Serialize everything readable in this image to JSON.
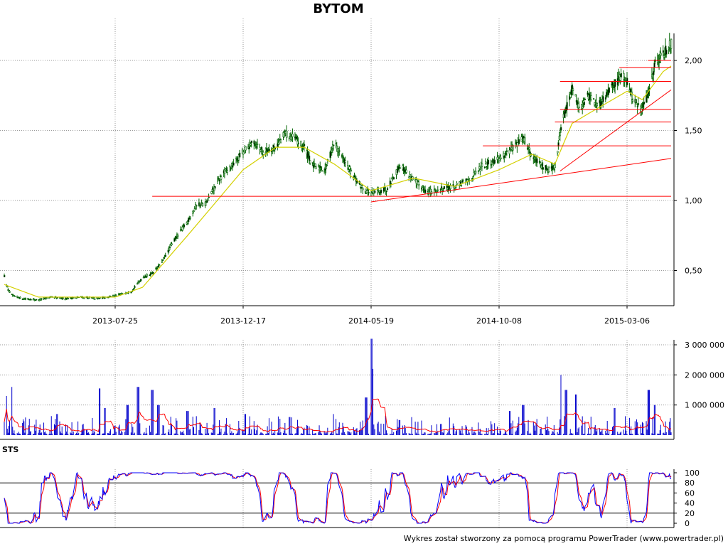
{
  "title": "BYTOM",
  "footer": "Wykres został stworzony za pomocą programu PowerTrader (www.powertrader.pl)",
  "colors": {
    "candle": "#006400",
    "moving_average": "#d4d000",
    "trendline": "#ff0000",
    "volume": "#0000cc",
    "volume_ma": "#ff0000",
    "sts_k": "#0000ff",
    "sts_d": "#ff0000",
    "grid": "#999999"
  },
  "chart_data": [
    {
      "type": "candlestick",
      "panel": "price",
      "title": "BYTOM",
      "x_ticks": [
        "2013-07-25",
        "2013-12-17",
        "2014-05-19",
        "2014-10-08",
        "2015-03-06"
      ],
      "y_ticks": [
        "0,50",
        "1,00",
        "1,50",
        "2,00"
      ],
      "ylim": [
        0.25,
        2.2
      ],
      "grid": "dotted",
      "close_keypoints": [
        [
          "2013-03-01",
          0.46
        ],
        [
          "2013-03-06",
          0.36
        ],
        [
          "2013-03-12",
          0.32
        ],
        [
          "2013-03-25",
          0.3
        ],
        [
          "2013-04-15",
          0.29
        ],
        [
          "2013-05-01",
          0.31
        ],
        [
          "2013-05-20",
          0.3
        ],
        [
          "2013-06-10",
          0.31
        ],
        [
          "2013-07-01",
          0.3
        ],
        [
          "2013-07-25",
          0.32
        ],
        [
          "2013-08-12",
          0.35
        ],
        [
          "2013-08-25",
          0.45
        ],
        [
          "2013-09-05",
          0.48
        ],
        [
          "2013-09-15",
          0.55
        ],
        [
          "2013-09-30",
          0.72
        ],
        [
          "2013-10-15",
          0.85
        ],
        [
          "2013-10-25",
          0.97
        ],
        [
          "2013-11-05",
          0.98
        ],
        [
          "2013-11-15",
          1.1
        ],
        [
          "2013-11-25",
          1.2
        ],
        [
          "2013-12-05",
          1.25
        ],
        [
          "2013-12-17",
          1.35
        ],
        [
          "2013-12-30",
          1.42
        ],
        [
          "2014-01-10",
          1.35
        ],
        [
          "2014-01-25",
          1.38
        ],
        [
          "2014-02-05",
          1.48
        ],
        [
          "2014-02-15",
          1.45
        ],
        [
          "2014-02-28",
          1.38
        ],
        [
          "2014-03-10",
          1.25
        ],
        [
          "2014-03-25",
          1.22
        ],
        [
          "2014-04-05",
          1.42
        ],
        [
          "2014-04-15",
          1.3
        ],
        [
          "2014-04-30",
          1.15
        ],
        [
          "2014-05-10",
          1.08
        ],
        [
          "2014-05-19",
          1.05
        ],
        [
          "2014-06-05",
          1.08
        ],
        [
          "2014-06-20",
          1.25
        ],
        [
          "2014-07-05",
          1.15
        ],
        [
          "2014-07-20",
          1.06
        ],
        [
          "2014-08-05",
          1.08
        ],
        [
          "2014-08-20",
          1.1
        ],
        [
          "2014-09-05",
          1.15
        ],
        [
          "2014-09-20",
          1.25
        ],
        [
          "2014-10-08",
          1.3
        ],
        [
          "2014-10-25",
          1.38
        ],
        [
          "2014-11-05",
          1.45
        ],
        [
          "2014-11-15",
          1.32
        ],
        [
          "2014-11-25",
          1.25
        ],
        [
          "2014-12-05",
          1.22
        ],
        [
          "2014-12-12",
          1.25
        ],
        [
          "2014-12-20",
          1.55
        ],
        [
          "2015-01-01",
          1.8
        ],
        [
          "2015-01-10",
          1.65
        ],
        [
          "2015-01-20",
          1.75
        ],
        [
          "2015-02-01",
          1.68
        ],
        [
          "2015-02-15",
          1.8
        ],
        [
          "2015-03-01",
          1.9
        ],
        [
          "2015-03-06",
          1.85
        ],
        [
          "2015-03-15",
          1.7
        ],
        [
          "2015-03-25",
          1.65
        ],
        [
          "2015-04-01",
          1.75
        ],
        [
          "2015-04-10",
          1.98
        ],
        [
          "2015-04-20",
          2.05
        ],
        [
          "2015-04-30",
          2.12
        ]
      ],
      "moving_average_keypoints": [
        [
          "2013-03-01",
          0.4
        ],
        [
          "2013-04-15",
          0.31
        ],
        [
          "2013-07-25",
          0.31
        ],
        [
          "2013-08-25",
          0.38
        ],
        [
          "2013-10-15",
          0.75
        ],
        [
          "2013-11-15",
          0.98
        ],
        [
          "2013-12-17",
          1.22
        ],
        [
          "2014-01-25",
          1.38
        ],
        [
          "2014-02-28",
          1.38
        ],
        [
          "2014-04-05",
          1.26
        ],
        [
          "2014-05-19",
          1.07
        ],
        [
          "2014-07-05",
          1.16
        ],
        [
          "2014-08-20",
          1.1
        ],
        [
          "2014-10-08",
          1.22
        ],
        [
          "2014-11-15",
          1.33
        ],
        [
          "2014-12-12",
          1.26
        ],
        [
          "2015-01-01",
          1.55
        ],
        [
          "2015-01-20",
          1.62
        ],
        [
          "2015-03-06",
          1.78
        ],
        [
          "2015-03-25",
          1.72
        ],
        [
          "2015-04-20",
          1.92
        ],
        [
          "2015-04-30",
          1.96
        ]
      ],
      "horizontal_levels": [
        {
          "y": 1.03,
          "from": "2013-09-05",
          "to": "2015-04-30"
        },
        {
          "y": 1.39,
          "from": "2014-09-20",
          "to": "2015-04-30"
        },
        {
          "y": 1.56,
          "from": "2014-12-12",
          "to": "2015-04-30"
        },
        {
          "y": 1.65,
          "from": "2014-12-18",
          "to": "2015-04-30"
        },
        {
          "y": 1.85,
          "from": "2014-12-18",
          "to": "2015-04-30"
        },
        {
          "y": 1.95,
          "from": "2015-02-25",
          "to": "2015-04-30"
        },
        {
          "y": 2.0,
          "from": "2015-04-01",
          "to": "2015-04-30"
        }
      ],
      "trendlines": [
        {
          "from": [
            "2014-05-19",
            0.99
          ],
          "to": [
            "2015-04-30",
            1.3
          ]
        },
        {
          "from": [
            "2014-12-18",
            1.21
          ],
          "to": [
            "2015-04-30",
            1.79
          ]
        }
      ]
    },
    {
      "type": "bar",
      "panel": "volume",
      "y_ticks": [
        "1 000 000",
        "2 000 000",
        "3 000 000"
      ],
      "ylim": [
        0,
        3300000
      ],
      "spikes": [
        [
          "2013-03-03",
          1300000
        ],
        [
          "2013-03-10",
          1600000
        ],
        [
          "2013-05-10",
          700000
        ],
        [
          "2013-07-05",
          1550000
        ],
        [
          "2013-07-12",
          900000
        ],
        [
          "2013-08-08",
          1000000
        ],
        [
          "2013-08-20",
          1600000
        ],
        [
          "2013-09-05",
          1500000
        ],
        [
          "2013-09-12",
          1000000
        ],
        [
          "2013-10-15",
          800000
        ],
        [
          "2013-11-15",
          900000
        ],
        [
          "2013-12-20",
          700000
        ],
        [
          "2014-02-10",
          600000
        ],
        [
          "2014-04-05",
          700000
        ],
        [
          "2014-05-13",
          1250000
        ],
        [
          "2014-05-19",
          3200000
        ],
        [
          "2014-05-20",
          2200000
        ],
        [
          "2014-06-20",
          500000
        ],
        [
          "2014-10-20",
          800000
        ],
        [
          "2014-11-05",
          1000000
        ],
        [
          "2014-12-20",
          2000000
        ],
        [
          "2014-12-25",
          1500000
        ],
        [
          "2015-01-05",
          1350000
        ],
        [
          "2015-02-20",
          900000
        ],
        [
          "2015-04-02",
          1500000
        ],
        [
          "2015-04-10",
          1000000
        ]
      ]
    },
    {
      "type": "line",
      "panel": "oscillator",
      "label": "STS",
      "y_ticks": [
        "0",
        "20",
        "40",
        "60",
        "80",
        "100"
      ],
      "ylim": [
        0,
        100
      ],
      "reference_lines": [
        20,
        80
      ]
    }
  ]
}
